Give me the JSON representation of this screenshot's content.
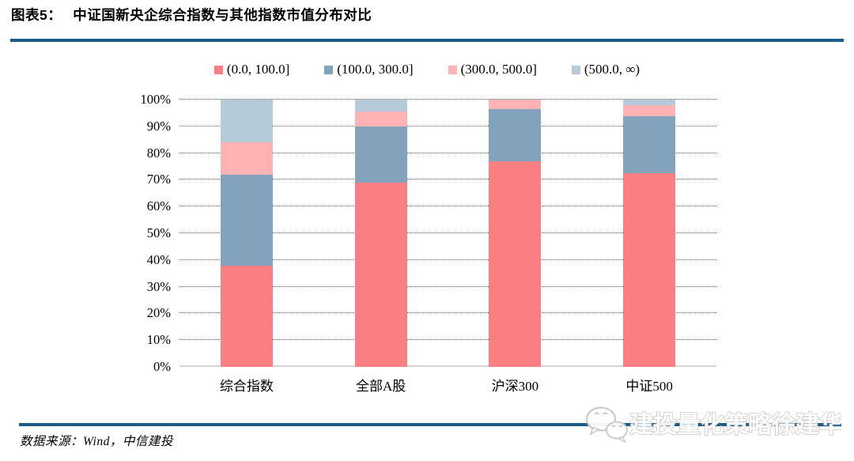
{
  "header": {
    "figure_label": "图表5：",
    "title": "中证国新央企综合指数与其他指数市值分布对比"
  },
  "chart_data": {
    "type": "bar",
    "stacked": true,
    "title": "中证国新央企综合指数与其他指数市值分布对比",
    "categories": [
      "综合指数",
      "全部A股",
      "沪深300",
      "中证500"
    ],
    "series": [
      {
        "name": "(0.0, 100.0]",
        "color": "#fa7f82",
        "values": [
          38,
          69,
          77,
          72.5
        ]
      },
      {
        "name": "(100.0, 300.0]",
        "color": "#83a3bd",
        "values": [
          34,
          21,
          19.4,
          21.3
        ]
      },
      {
        "name": "(300.0, 500.0]",
        "color": "#ffb3b5",
        "values": [
          12,
          5.5,
          3.6,
          4
        ]
      },
      {
        "name": "(500.0, ∞)",
        "color": "#b5cbd9",
        "values": [
          16,
          4.5,
          0,
          2.2
        ]
      }
    ],
    "xlabel": "",
    "ylabel": "",
    "ylim": [
      0,
      100
    ],
    "yticks": [
      "0%",
      "10%",
      "20%",
      "30%",
      "40%",
      "50%",
      "60%",
      "70%",
      "80%",
      "90%",
      "100%"
    ],
    "grid": "horizontal-dotted",
    "legend_position": "top-center"
  },
  "footer": {
    "source_text": "数据来源：Wind，中信建投",
    "watermark_text": "建投量化策略徐建华",
    "watermark_icon": "wechat-icon"
  },
  "colors": {
    "rule": "#1f5b87",
    "gridline": "#595959",
    "axis_base": "#d4d4d4",
    "watermark_gray": "#c9c9c9"
  }
}
